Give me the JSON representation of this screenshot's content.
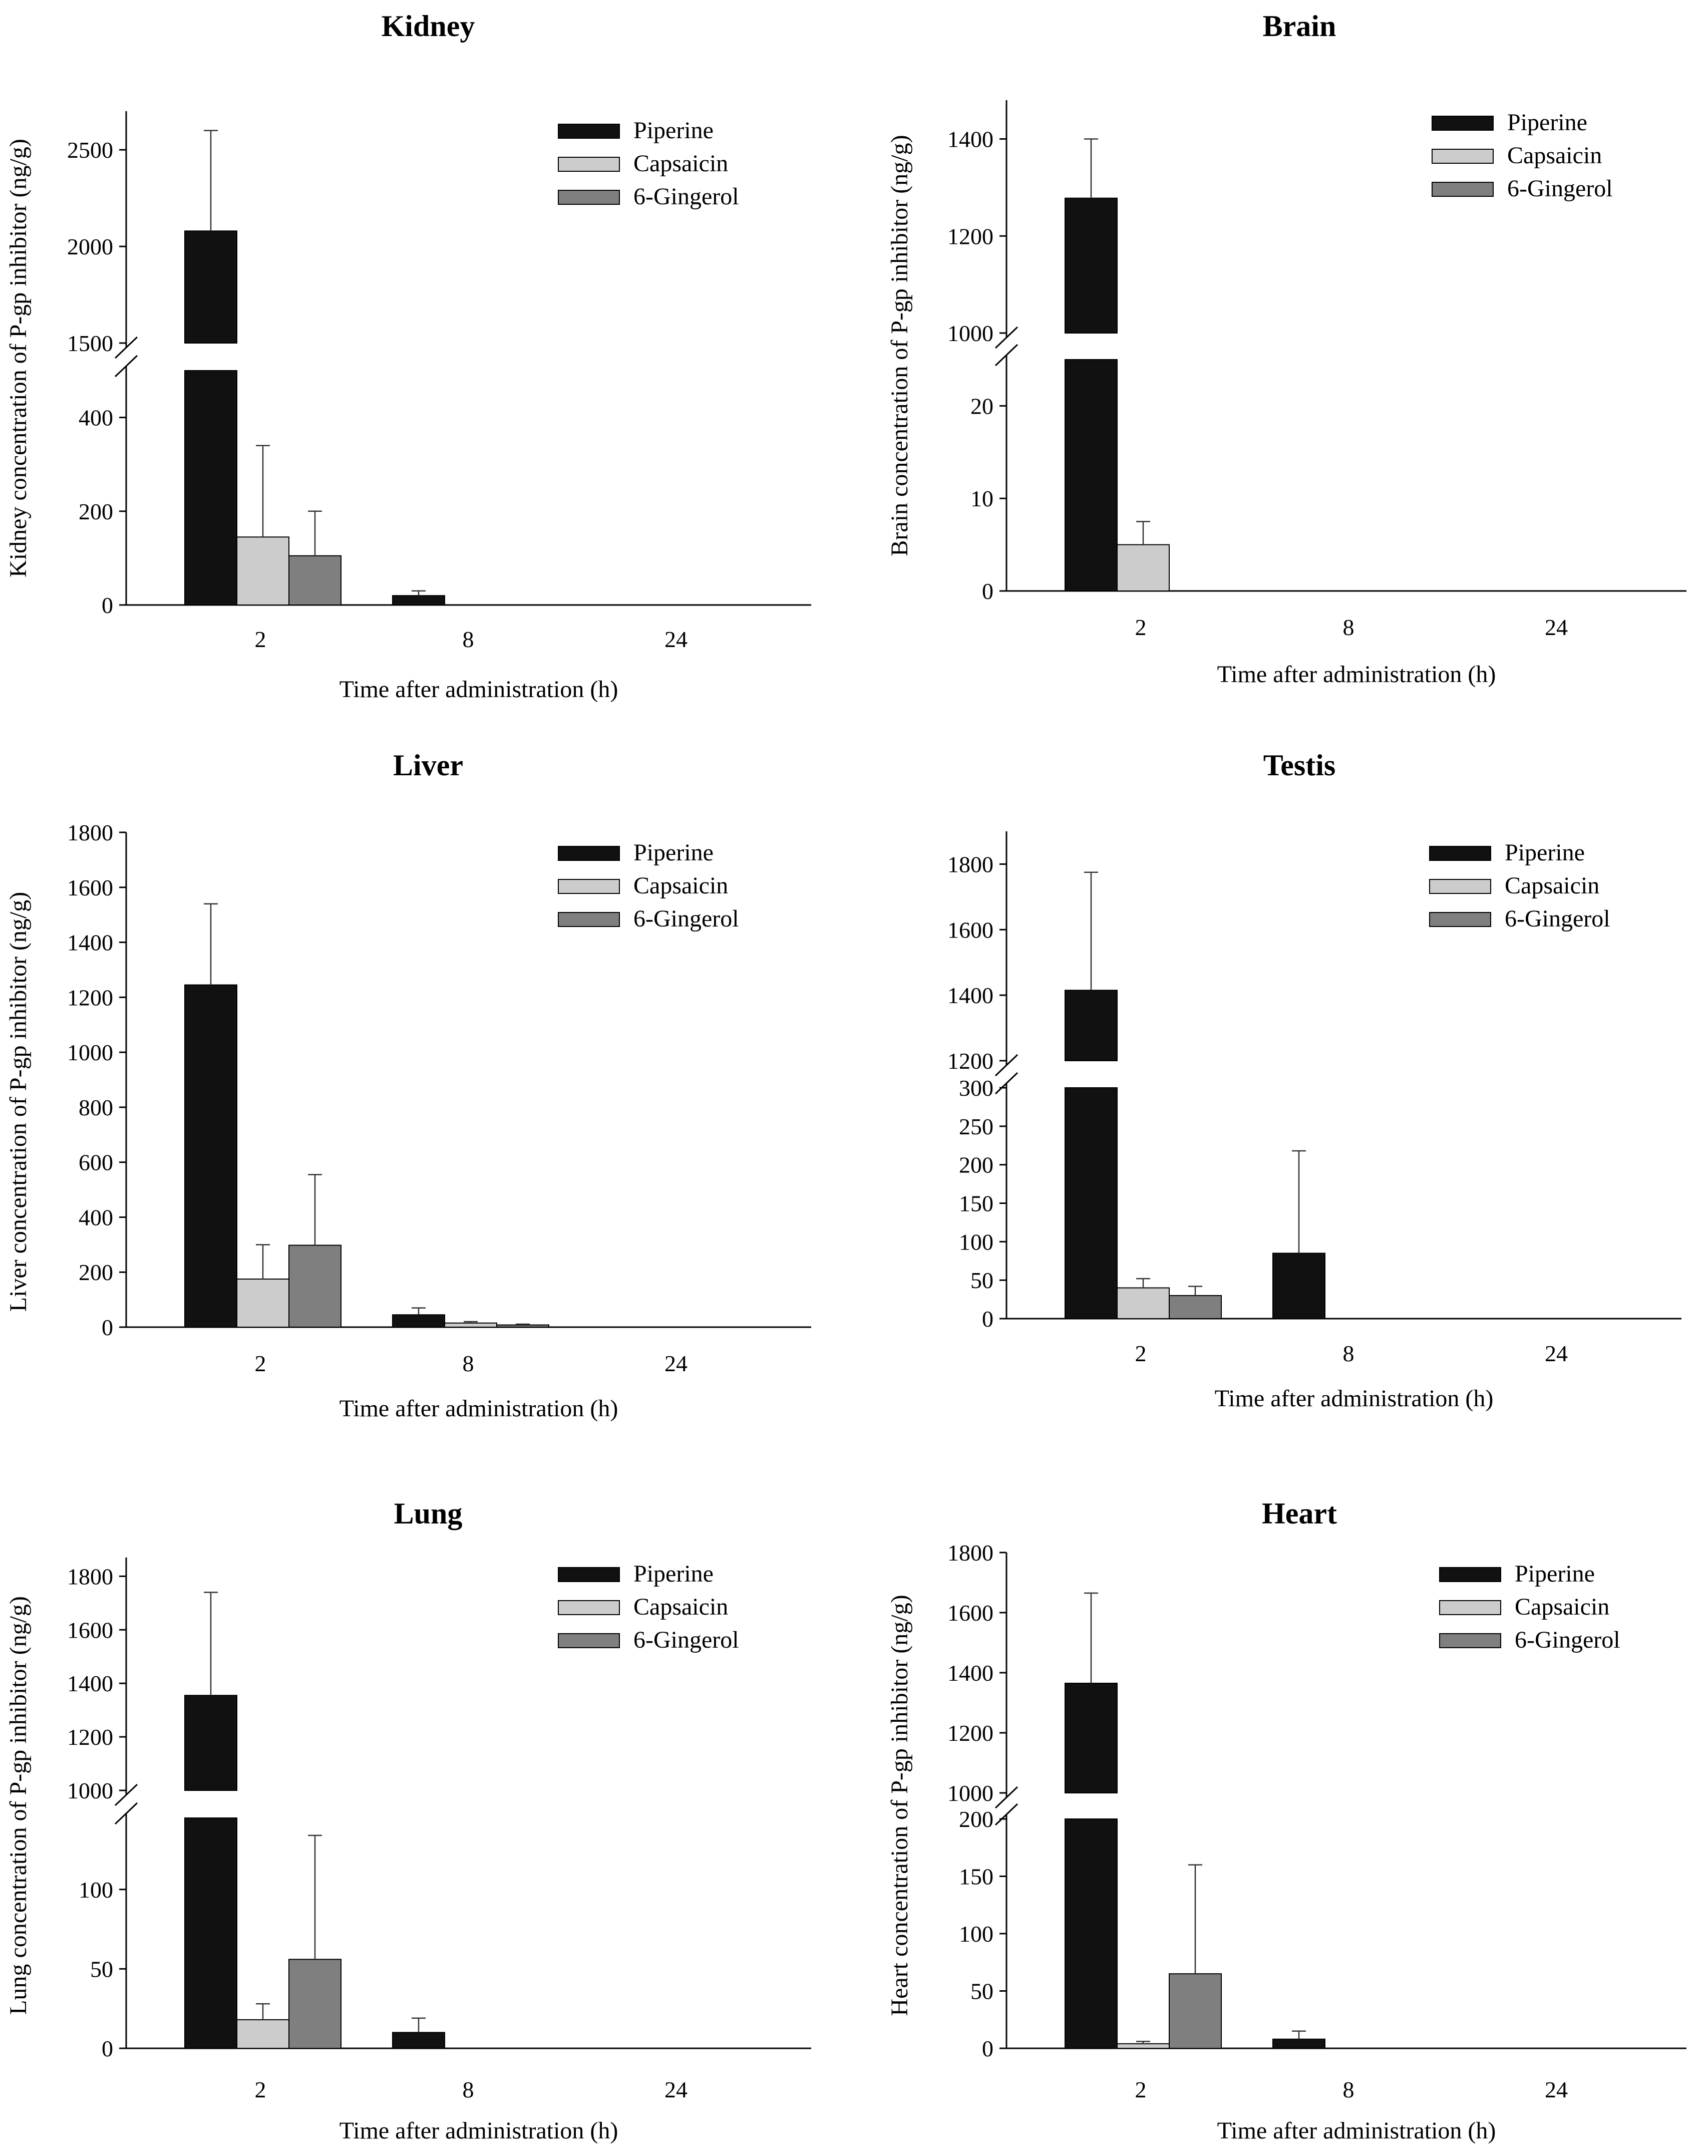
{
  "chart_data": [
    {
      "type": "bar",
      "title": "Kidney",
      "xlabel": "Time after administration (h)",
      "ylabel": "Kidney concentration of P-gp inhibitor (ng/g)",
      "categories": [
        "2",
        "8",
        "24"
      ],
      "series": [
        {
          "name": "Piperine",
          "color": "#111111",
          "values": [
            2080,
            20,
            0
          ],
          "errors": [
            520,
            10,
            0
          ]
        },
        {
          "name": "Capsaicin",
          "color": "#cccccc",
          "values": [
            145,
            0,
            0
          ],
          "errors": [
            195,
            0,
            0
          ]
        },
        {
          "name": "6-Gingerol",
          "color": "#7f7f7f",
          "values": [
            105,
            0,
            0
          ],
          "errors": [
            95,
            0,
            0
          ]
        }
      ],
      "y_break": {
        "lower_range": [
          0,
          500
        ],
        "upper_range": [
          1500,
          2700
        ]
      },
      "lower_ticks": [
        0,
        200,
        400
      ],
      "upper_ticks": [
        1500,
        2000,
        2500
      ],
      "legend": "top-right"
    },
    {
      "type": "bar",
      "title": "Brain",
      "xlabel": "Time after administration (h)",
      "ylabel": "Brain concentration of P-gp inhibitor (ng/g)",
      "categories": [
        "2",
        "8",
        "24"
      ],
      "series": [
        {
          "name": "Piperine",
          "color": "#111111",
          "values": [
            1278,
            0,
            0
          ],
          "errors": [
            122,
            0,
            0
          ]
        },
        {
          "name": "Capsaicin",
          "color": "#cccccc",
          "values": [
            5,
            0,
            0
          ],
          "errors": [
            2.5,
            0,
            0
          ]
        },
        {
          "name": "6-Gingerol",
          "color": "#7f7f7f",
          "values": [
            0,
            0,
            0
          ],
          "errors": [
            0,
            0,
            0
          ]
        }
      ],
      "y_break": {
        "lower_range": [
          0,
          25
        ],
        "upper_range": [
          1000,
          1480
        ]
      },
      "lower_ticks": [
        0,
        10,
        20
      ],
      "upper_ticks": [
        1000,
        1200,
        1400
      ],
      "legend": "top-right"
    },
    {
      "type": "bar",
      "title": "Liver",
      "xlabel": "Time after administration (h)",
      "ylabel": "Liver concentration of P-gp inhibitor (ng/g)",
      "categories": [
        "2",
        "8",
        "24"
      ],
      "series": [
        {
          "name": "Piperine",
          "color": "#111111",
          "values": [
            1245,
            45,
            0
          ],
          "errors": [
            295,
            25,
            0
          ]
        },
        {
          "name": "Capsaicin",
          "color": "#cccccc",
          "values": [
            175,
            15,
            0
          ],
          "errors": [
            125,
            5,
            0
          ]
        },
        {
          "name": "6-Gingerol",
          "color": "#7f7f7f",
          "values": [
            298,
            8,
            0
          ],
          "errors": [
            257,
            3,
            0
          ]
        }
      ],
      "y_range": [
        0,
        1800
      ],
      "ticks": [
        0,
        200,
        400,
        600,
        800,
        1000,
        1200,
        1400,
        1600,
        1800
      ],
      "legend": "top-right"
    },
    {
      "type": "bar",
      "title": "Testis",
      "xlabel": "Time after administration (h)",
      "ylabel": "",
      "categories": [
        "2",
        "8",
        "24"
      ],
      "series": [
        {
          "name": "Piperine",
          "color": "#111111",
          "values": [
            1415,
            85,
            0
          ],
          "errors": [
            360,
            133,
            0
          ]
        },
        {
          "name": "Capsaicin",
          "color": "#cccccc",
          "values": [
            40,
            0,
            0
          ],
          "errors": [
            12,
            0,
            0
          ]
        },
        {
          "name": "6-Gingerol",
          "color": "#7f7f7f",
          "values": [
            30,
            0,
            0
          ],
          "errors": [
            12,
            0,
            0
          ]
        }
      ],
      "y_break": {
        "lower_range": [
          0,
          300
        ],
        "upper_range": [
          1200,
          1900
        ]
      },
      "lower_ticks": [
        0,
        50,
        100,
        150,
        200,
        250,
        300
      ],
      "upper_ticks": [
        1200,
        1400,
        1600,
        1800
      ],
      "legend": "top-right"
    },
    {
      "type": "bar",
      "title": "Lung",
      "xlabel": "Time after administration (h)",
      "ylabel": "Lung concentration of P-gp inhibitor (ng/g)",
      "categories": [
        "2",
        "8",
        "24"
      ],
      "series": [
        {
          "name": "Piperine",
          "color": "#111111",
          "values": [
            1355,
            10,
            0
          ],
          "errors": [
            385,
            9,
            0
          ]
        },
        {
          "name": "Capsaicin",
          "color": "#cccccc",
          "values": [
            18,
            0,
            0
          ],
          "errors": [
            10,
            0,
            0
          ]
        },
        {
          "name": "6-Gingerol",
          "color": "#7f7f7f",
          "values": [
            56,
            0,
            0
          ],
          "errors": [
            78,
            0,
            0
          ]
        }
      ],
      "y_break": {
        "lower_range": [
          0,
          145
        ],
        "upper_range": [
          1000,
          1870
        ]
      },
      "lower_ticks": [
        0,
        50,
        100
      ],
      "upper_ticks": [
        1000,
        1200,
        1400,
        1600,
        1800
      ],
      "legend": "top-right"
    },
    {
      "type": "bar",
      "title": "Heart",
      "xlabel": "Time after administration (h)",
      "ylabel": "Heart concentration of P-gp inhibitor (ng/g)",
      "categories": [
        "2",
        "8",
        "24"
      ],
      "series": [
        {
          "name": "Piperine",
          "color": "#111111",
          "values": [
            1365,
            8,
            0
          ],
          "errors": [
            300,
            7,
            0
          ]
        },
        {
          "name": "Capsaicin",
          "color": "#cccccc",
          "values": [
            4,
            0,
            0
          ],
          "errors": [
            2,
            0,
            0
          ]
        },
        {
          "name": "6-Gingerol",
          "color": "#7f7f7f",
          "values": [
            65,
            0,
            0
          ],
          "errors": [
            95,
            0,
            0
          ]
        }
      ],
      "y_break": {
        "lower_range": [
          0,
          200
        ],
        "upper_range": [
          1000,
          1800
        ]
      },
      "lower_ticks": [
        0,
        50,
        100,
        150,
        200
      ],
      "upper_ticks": [
        1000,
        1200,
        1400,
        1600,
        1800
      ],
      "legend": "top-right"
    }
  ]
}
